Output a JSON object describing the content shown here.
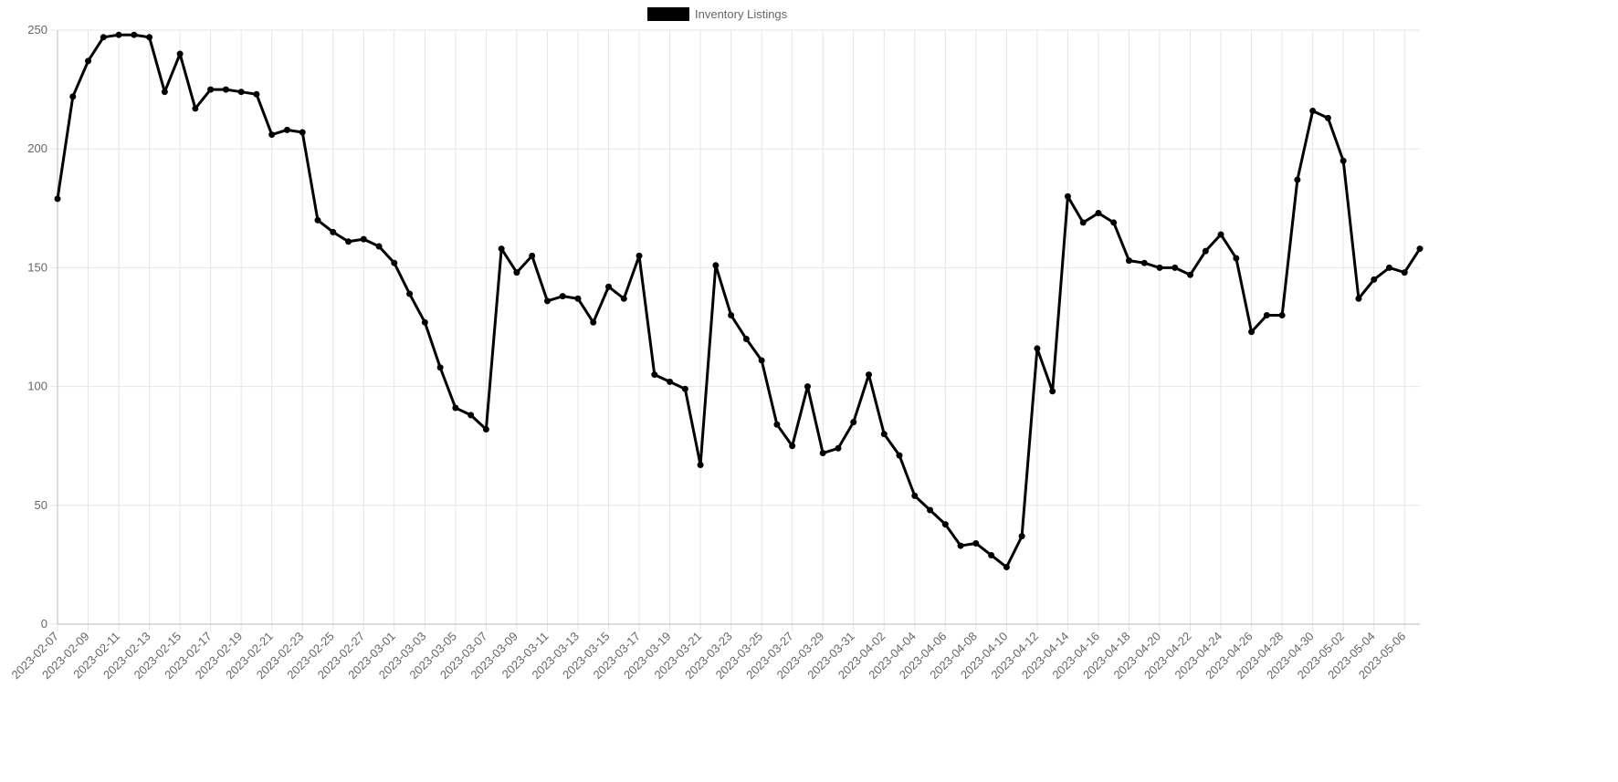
{
  "chart_data": {
    "type": "line",
    "categories": [
      "2023-02-07",
      null,
      "2023-02-09",
      null,
      "2023-02-11",
      null,
      "2023-02-13",
      null,
      "2023-02-15",
      null,
      "2023-02-17",
      null,
      "2023-02-19",
      null,
      "2023-02-21",
      null,
      "2023-02-23",
      null,
      "2023-02-25",
      null,
      "2023-02-27",
      null,
      "2023-03-01",
      null,
      "2023-03-03",
      null,
      "2023-03-05",
      null,
      "2023-03-07",
      null,
      "2023-03-09",
      null,
      "2023-03-11",
      null,
      "2023-03-13",
      null,
      "2023-03-15",
      null,
      "2023-03-17",
      null,
      "2023-03-19",
      null,
      "2023-03-21",
      null,
      "2023-03-23",
      null,
      "2023-03-25",
      null,
      "2023-03-27",
      null,
      "2023-03-29",
      null,
      "2023-03-31",
      null,
      "2023-04-02",
      null,
      "2023-04-04",
      null,
      "2023-04-06",
      null,
      "2023-04-08",
      null,
      "2023-04-10",
      null,
      "2023-04-12",
      null,
      "2023-04-14",
      null,
      "2023-04-16",
      null,
      "2023-04-18",
      null,
      "2023-04-20",
      null,
      "2023-04-22",
      null,
      "2023-04-24",
      null,
      "2023-04-26",
      null,
      "2023-04-28",
      null,
      "2023-04-30",
      null,
      "2023-05-02",
      null,
      "2023-05-04",
      null,
      "2023-05-06",
      null
    ],
    "series": [
      {
        "name": "Inventory Listings",
        "color": "#000000",
        "values": [
          179,
          222,
          237,
          247,
          248,
          248,
          247,
          224,
          240,
          217,
          225,
          225,
          224,
          223,
          206,
          208,
          207,
          170,
          165,
          161,
          162,
          159,
          152,
          139,
          127,
          108,
          91,
          88,
          82,
          158,
          148,
          155,
          136,
          138,
          137,
          127,
          142,
          137,
          155,
          105,
          102,
          99,
          67,
          151,
          130,
          120,
          111,
          84,
          75,
          100,
          72,
          74,
          85,
          105,
          80,
          71,
          54,
          48,
          42,
          33,
          34,
          29,
          24,
          37,
          116,
          98,
          180,
          169,
          173,
          169,
          153,
          152,
          150,
          150,
          147,
          157,
          164,
          154,
          123,
          130,
          130,
          187,
          216,
          213,
          195,
          137,
          145,
          150,
          148,
          158
        ]
      }
    ],
    "ylim": [
      0,
      250
    ],
    "yticks": [
      0,
      50,
      100,
      150,
      200,
      250
    ],
    "grid": true,
    "legend": "top"
  }
}
